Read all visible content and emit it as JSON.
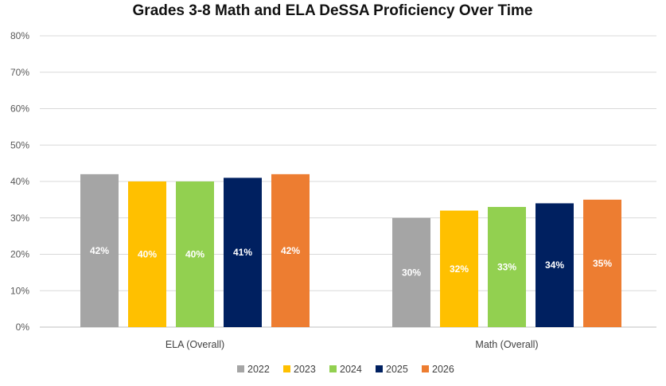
{
  "chart_data": {
    "type": "bar",
    "title": "Grades 3-8 Math and ELA DeSSA Proficiency Over Time",
    "xlabel": "",
    "ylabel": "",
    "categories": [
      "ELA (Overall)",
      "Math (Overall)"
    ],
    "series": [
      {
        "name": "2022",
        "values": [
          42,
          30
        ],
        "labels": [
          "42%",
          "30%"
        ],
        "color": "#A5A5A5"
      },
      {
        "name": "2023",
        "values": [
          40,
          32
        ],
        "labels": [
          "40%",
          "32%"
        ],
        "color": "#FFC000"
      },
      {
        "name": "2024",
        "values": [
          40,
          33
        ],
        "labels": [
          "40%",
          "33%"
        ],
        "color": "#92D050"
      },
      {
        "name": "2025",
        "values": [
          41,
          34
        ],
        "labels": [
          "41%",
          "34%"
        ],
        "color": "#002060"
      },
      {
        "name": "2026",
        "values": [
          42,
          35
        ],
        "labels": [
          "42%",
          "35%"
        ],
        "color": "#ED7D31"
      }
    ],
    "ylim": [
      0,
      80
    ],
    "yticks": [
      "0%",
      "10%",
      "20%",
      "30%",
      "40%",
      "50%",
      "60%",
      "70%",
      "80%"
    ],
    "grid": true,
    "legend_position": "bottom"
  }
}
